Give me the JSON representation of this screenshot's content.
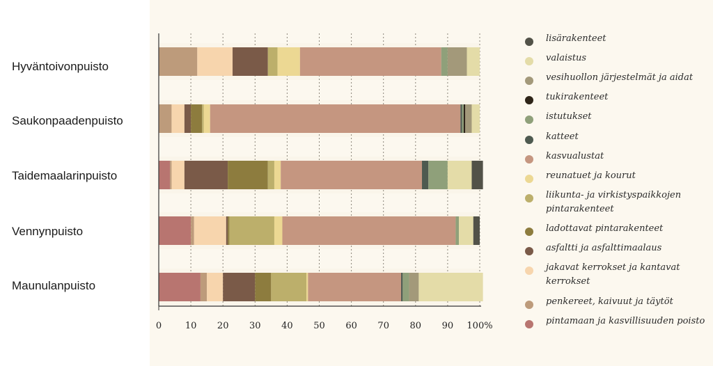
{
  "chart_data": {
    "type": "bar",
    "orientation": "horizontal",
    "stacked": true,
    "xlim": [
      0,
      100
    ],
    "x_ticks": [
      "0",
      "10",
      "20",
      "30",
      "40",
      "50",
      "60",
      "70",
      "80",
      "90",
      "100%"
    ],
    "grid": "vertical dotted",
    "legend_position": "right",
    "categories": [
      "Hyväntoivonpuisto",
      "Saukonpaadenpuisto",
      "Taidemaalarinpuisto",
      "Vennynpuisto",
      "Maunulanpuisto"
    ],
    "series": [
      {
        "name": "pintamaan ja kasvillisuuden poisto",
        "color": "#b87570",
        "values": [
          0,
          0,
          3.5,
          10,
          13
        ]
      },
      {
        "name": "penkereet, kaivuut ja täytöt",
        "color": "#bd9b7b",
        "values": [
          12,
          4,
          0.5,
          1,
          2
        ]
      },
      {
        "name": "jakavat kerrokset ja kantavat kerrokset",
        "color": "#f7d5ad",
        "values": [
          11,
          4,
          4,
          10,
          5
        ]
      },
      {
        "name": "asfaltti ja asfalttimaalaus",
        "color": "#7a5a48",
        "values": [
          11,
          2,
          13.5,
          0.5,
          10
        ]
      },
      {
        "name": "ladottavat pintarakenteet",
        "color": "#8d7c3e",
        "values": [
          0,
          3.5,
          12.5,
          0.5,
          5
        ]
      },
      {
        "name": "liikunta- ja virkistyspaikkojen pintarakenteet",
        "color": "#bcaf6b",
        "values": [
          3,
          0.5,
          2,
          14,
          11
        ]
      },
      {
        "name": "reunatuet ja kourut",
        "color": "#ecd893",
        "values": [
          7,
          2,
          2,
          2.5,
          0.5
        ]
      },
      {
        "name": "kasvualustat",
        "color": "#c59680",
        "values": [
          44,
          78,
          44,
          54,
          29
        ]
      },
      {
        "name": "katteet",
        "color": "#4e5a50",
        "values": [
          0,
          0.5,
          2,
          0,
          0.5
        ]
      },
      {
        "name": "istutukset",
        "color": "#8fa07a",
        "values": [
          2,
          0.5,
          6,
          1,
          2
        ]
      },
      {
        "name": "tukirakenteet",
        "color": "#2e2418",
        "values": [
          0,
          0.5,
          0,
          0,
          0
        ]
      },
      {
        "name": "vesihuollon järjestelmät ja aidat",
        "color": "#a3997a",
        "values": [
          6,
          2,
          0,
          0,
          3
        ]
      },
      {
        "name": "valaistus",
        "color": "#e4dca8",
        "values": [
          4,
          2.5,
          7.5,
          4.5,
          20
        ]
      },
      {
        "name": "lisärakenteet",
        "color": "#525248",
        "values": [
          0,
          0,
          3.5,
          2,
          0
        ]
      }
    ]
  },
  "legend": {
    "items": [
      {
        "label": "lisärakenteet",
        "color": "#525248"
      },
      {
        "label": "valaistus",
        "color": "#e4dca8"
      },
      {
        "label": "vesihuollon järjestelmät ja aidat",
        "color": "#a3997a"
      },
      {
        "label": "tukirakenteet",
        "color": "#2e2418"
      },
      {
        "label": "istutukset",
        "color": "#8fa07a"
      },
      {
        "label": "katteet",
        "color": "#4e5a50"
      },
      {
        "label": "kasvualustat",
        "color": "#c59680"
      },
      {
        "label": "reunatuet ja kourut",
        "color": "#ecd893"
      },
      {
        "label": "liikunta- ja virkistyspaikkojen pintarakenteet",
        "color": "#bcaf6b"
      },
      {
        "label": "ladottavat pintarakenteet",
        "color": "#8d7c3e"
      },
      {
        "label": "asfaltti ja asfalttimaalaus",
        "color": "#7a5a48"
      },
      {
        "label": "jakavat kerrokset ja kantavat kerrokset",
        "color": "#f7d5ad"
      },
      {
        "label": "penkereet, kaivuut ja täytöt",
        "color": "#bd9b7b"
      },
      {
        "label": "pintamaan ja kasvillisuuden poisto",
        "color": "#b87570"
      }
    ]
  },
  "colors": {
    "panel_background": "#fcf8ef",
    "band_background": "#faf5ea",
    "gridline": "#8a8478",
    "axis": "#333333"
  }
}
